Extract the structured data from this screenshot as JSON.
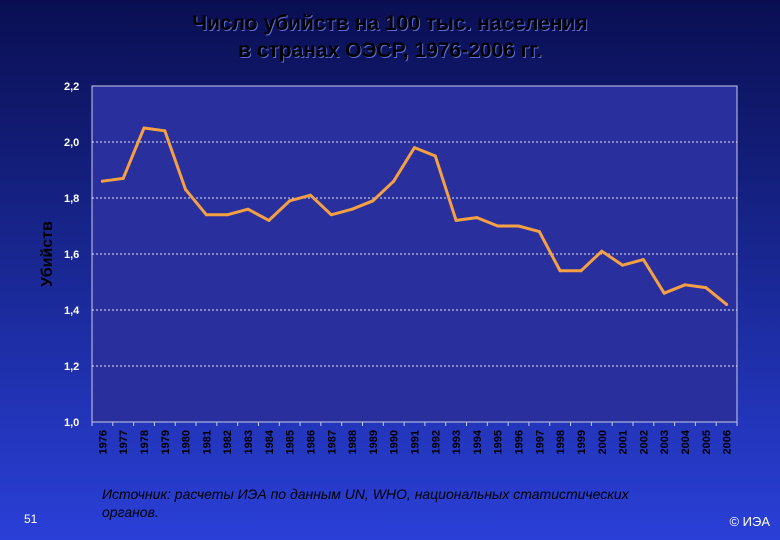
{
  "chart_data": {
    "type": "line",
    "title_line1": "Число убийств на 100 тыс. населения",
    "title_line2": "в странах ОЭСР, 1976-2006 гг.",
    "ylabel": "Убийств",
    "xlabel": "",
    "ylim": [
      1.0,
      2.2
    ],
    "yticks": [
      "1,0",
      "1,2",
      "1,4",
      "1,6",
      "1,8",
      "2,0",
      "2,2"
    ],
    "ytick_values": [
      1.0,
      1.2,
      1.4,
      1.6,
      1.8,
      2.0,
      2.2
    ],
    "grid": true,
    "categories": [
      "1976",
      "1977",
      "1978",
      "1979",
      "1980",
      "1981",
      "1982",
      "1983",
      "1984",
      "1985",
      "1986",
      "1987",
      "1988",
      "1989",
      "1990",
      "1991",
      "1992",
      "1993",
      "1994",
      "1995",
      "1996",
      "1997",
      "1998",
      "1999",
      "2000",
      "2001",
      "2002",
      "2003",
      "2004",
      "2005",
      "2006"
    ],
    "series": [
      {
        "values": [
          1.86,
          1.87,
          2.05,
          2.04,
          1.83,
          1.74,
          1.74,
          1.76,
          1.72,
          1.79,
          1.81,
          1.74,
          1.76,
          1.79,
          1.86,
          1.98,
          1.95,
          1.72,
          1.73,
          1.7,
          1.7,
          1.68,
          1.54,
          1.54,
          1.61,
          1.56,
          1.58,
          1.46,
          1.49,
          1.48,
          1.42
        ],
        "color": "#f5a043"
      }
    ]
  },
  "footer": {
    "source": "Источник: расчеты ИЭА по данным UN, WHO, национальных статистических органов.",
    "page_number": "51",
    "copyright": "© ИЭА"
  },
  "colors": {
    "plot_background": "#2a2f9e",
    "plot_border": "#c8cce6",
    "line": "#f5a043"
  }
}
